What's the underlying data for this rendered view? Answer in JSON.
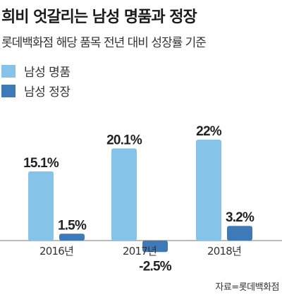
{
  "title": "희비 엇갈리는 남성 명품과 정장",
  "subtitle": "롯데백화점 해당 품목 전년 대비 성장률 기준",
  "source": "자료=롯데백화점",
  "colors": {
    "series1": "#86c3e9",
    "series2": "#3f7ab8",
    "axis": "#777777"
  },
  "chart_data": {
    "type": "bar",
    "categories": [
      "2016년",
      "2017년",
      "2018년"
    ],
    "series": [
      {
        "name": "남성 명품",
        "values": [
          15.1,
          20.1,
          22
        ],
        "labels": [
          "15.1%",
          "20.1%",
          "22%"
        ]
      },
      {
        "name": "남성 정장",
        "values": [
          1.5,
          -2.5,
          3.2
        ],
        "labels": [
          "1.5%",
          "-2.5%",
          "3.2%"
        ]
      }
    ],
    "unit": "%",
    "ylim": [
      -2.5,
      22
    ],
    "grid": false,
    "legend": "top-left"
  }
}
